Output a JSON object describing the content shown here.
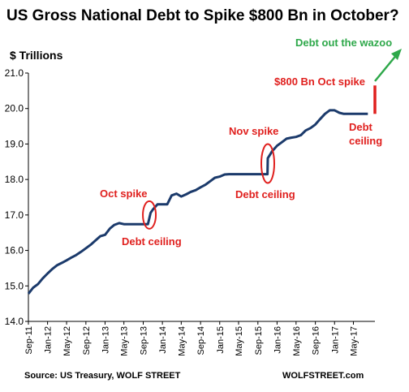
{
  "chart_data": {
    "type": "line",
    "title": "US Gross National Debt to Spike $800 Bn in October?",
    "ylabel": "$ Trillions",
    "ylim": [
      14.0,
      21.0
    ],
    "yticks": [
      "14.0",
      "15.0",
      "16.0",
      "17.0",
      "18.0",
      "19.0",
      "20.0",
      "21.0"
    ],
    "xlim": [
      "2011-09-01",
      "2017-09-15"
    ],
    "xticks": [
      {
        "label": "Sep-11",
        "date": "2011-09-01"
      },
      {
        "label": "Jan-12",
        "date": "2012-01-01"
      },
      {
        "label": "May-12",
        "date": "2012-05-01"
      },
      {
        "label": "Sep-12",
        "date": "2012-09-01"
      },
      {
        "label": "Jan-13",
        "date": "2013-01-01"
      },
      {
        "label": "May-13",
        "date": "2013-05-01"
      },
      {
        "label": "Sep-13",
        "date": "2013-09-01"
      },
      {
        "label": "Jan-14",
        "date": "2014-01-01"
      },
      {
        "label": "May-14",
        "date": "2014-05-01"
      },
      {
        "label": "Sep-14",
        "date": "2014-09-01"
      },
      {
        "label": "Jan-15",
        "date": "2015-01-01"
      },
      {
        "label": "May-15",
        "date": "2015-05-01"
      },
      {
        "label": "Sep-15",
        "date": "2015-09-01"
      },
      {
        "label": "Jan-16",
        "date": "2016-01-01"
      },
      {
        "label": "May-16",
        "date": "2016-05-01"
      },
      {
        "label": "Sep-16",
        "date": "2016-09-01"
      },
      {
        "label": "Jan-17",
        "date": "2017-01-01"
      },
      {
        "label": "May-17",
        "date": "2017-05-01"
      }
    ],
    "series": [
      {
        "name": "",
        "color": "#1b3a6b",
        "points": [
          [
            "2011-09-01",
            14.78
          ],
          [
            "2011-10-01",
            14.95
          ],
          [
            "2011-11-01",
            15.05
          ],
          [
            "2011-12-01",
            15.21
          ],
          [
            "2012-01-01",
            15.35
          ],
          [
            "2012-02-01",
            15.48
          ],
          [
            "2012-03-01",
            15.58
          ],
          [
            "2012-04-01",
            15.65
          ],
          [
            "2012-05-01",
            15.72
          ],
          [
            "2012-06-01",
            15.8
          ],
          [
            "2012-07-01",
            15.87
          ],
          [
            "2012-08-01",
            15.96
          ],
          [
            "2012-09-01",
            16.06
          ],
          [
            "2012-10-01",
            16.16
          ],
          [
            "2012-11-01",
            16.28
          ],
          [
            "2012-12-01",
            16.4
          ],
          [
            "2013-01-01",
            16.44
          ],
          [
            "2013-02-01",
            16.62
          ],
          [
            "2013-03-01",
            16.72
          ],
          [
            "2013-04-01",
            16.77
          ],
          [
            "2013-05-01",
            16.74
          ],
          [
            "2013-06-01",
            16.74
          ],
          [
            "2013-07-01",
            16.74
          ],
          [
            "2013-08-01",
            16.74
          ],
          [
            "2013-09-01",
            16.74
          ],
          [
            "2013-10-01",
            16.74
          ],
          [
            "2013-10-18",
            17.06
          ],
          [
            "2013-11-01",
            17.15
          ],
          [
            "2013-12-01",
            17.3
          ],
          [
            "2014-01-01",
            17.3
          ],
          [
            "2014-02-01",
            17.3
          ],
          [
            "2014-03-01",
            17.55
          ],
          [
            "2014-04-01",
            17.6
          ],
          [
            "2014-05-01",
            17.52
          ],
          [
            "2014-06-01",
            17.58
          ],
          [
            "2014-07-01",
            17.65
          ],
          [
            "2014-08-01",
            17.7
          ],
          [
            "2014-09-01",
            17.78
          ],
          [
            "2014-10-01",
            17.85
          ],
          [
            "2014-11-01",
            17.95
          ],
          [
            "2014-12-01",
            18.05
          ],
          [
            "2015-01-01",
            18.08
          ],
          [
            "2015-02-01",
            18.14
          ],
          [
            "2015-03-01",
            18.15
          ],
          [
            "2015-04-01",
            18.15
          ],
          [
            "2015-05-01",
            18.15
          ],
          [
            "2015-06-01",
            18.15
          ],
          [
            "2015-07-01",
            18.15
          ],
          [
            "2015-08-01",
            18.15
          ],
          [
            "2015-09-01",
            18.15
          ],
          [
            "2015-10-01",
            18.15
          ],
          [
            "2015-11-01",
            18.15
          ],
          [
            "2015-11-03",
            18.6
          ],
          [
            "2015-11-20",
            18.72
          ],
          [
            "2015-12-01",
            18.8
          ],
          [
            "2016-01-01",
            18.95
          ],
          [
            "2016-02-01",
            19.05
          ],
          [
            "2016-03-01",
            19.15
          ],
          [
            "2016-04-01",
            19.18
          ],
          [
            "2016-05-01",
            19.2
          ],
          [
            "2016-06-01",
            19.25
          ],
          [
            "2016-07-01",
            19.38
          ],
          [
            "2016-08-01",
            19.45
          ],
          [
            "2016-09-01",
            19.55
          ],
          [
            "2016-10-01",
            19.7
          ],
          [
            "2016-11-01",
            19.85
          ],
          [
            "2016-12-01",
            19.95
          ],
          [
            "2017-01-01",
            19.95
          ],
          [
            "2017-02-01",
            19.88
          ],
          [
            "2017-03-01",
            19.85
          ],
          [
            "2017-04-01",
            19.85
          ],
          [
            "2017-05-01",
            19.85
          ],
          [
            "2017-06-01",
            19.85
          ],
          [
            "2017-07-01",
            19.85
          ],
          [
            "2017-08-01",
            19.85
          ]
        ]
      },
      {
        "name": "",
        "color": "#e0201e",
        "points": [
          [
            "2017-09-15",
            19.85
          ],
          [
            "2017-09-15",
            20.65
          ]
        ]
      }
    ],
    "highlights": [
      {
        "date": "2013-10-10",
        "y": 17.0,
        "label": "Oct spike"
      },
      {
        "date": "2015-11-03",
        "y": 18.45,
        "label": "Nov spike"
      }
    ],
    "annotations": {
      "oct_spike": "Oct spike",
      "debt_ceiling_1": "Debt ceiling",
      "nov_spike": "Nov spike",
      "debt_ceiling_2": "Debt ceiling",
      "oct_800": "$800 Bn Oct spike",
      "debt_line": "Debt",
      "ceiling_line": "ceiling",
      "wazoo": "Debt out the wazoo"
    },
    "grid": false,
    "legend": "none"
  },
  "footer": {
    "source": "Source: US Treasury, WOLF STREET",
    "site": "WOLFSTREET.com"
  }
}
